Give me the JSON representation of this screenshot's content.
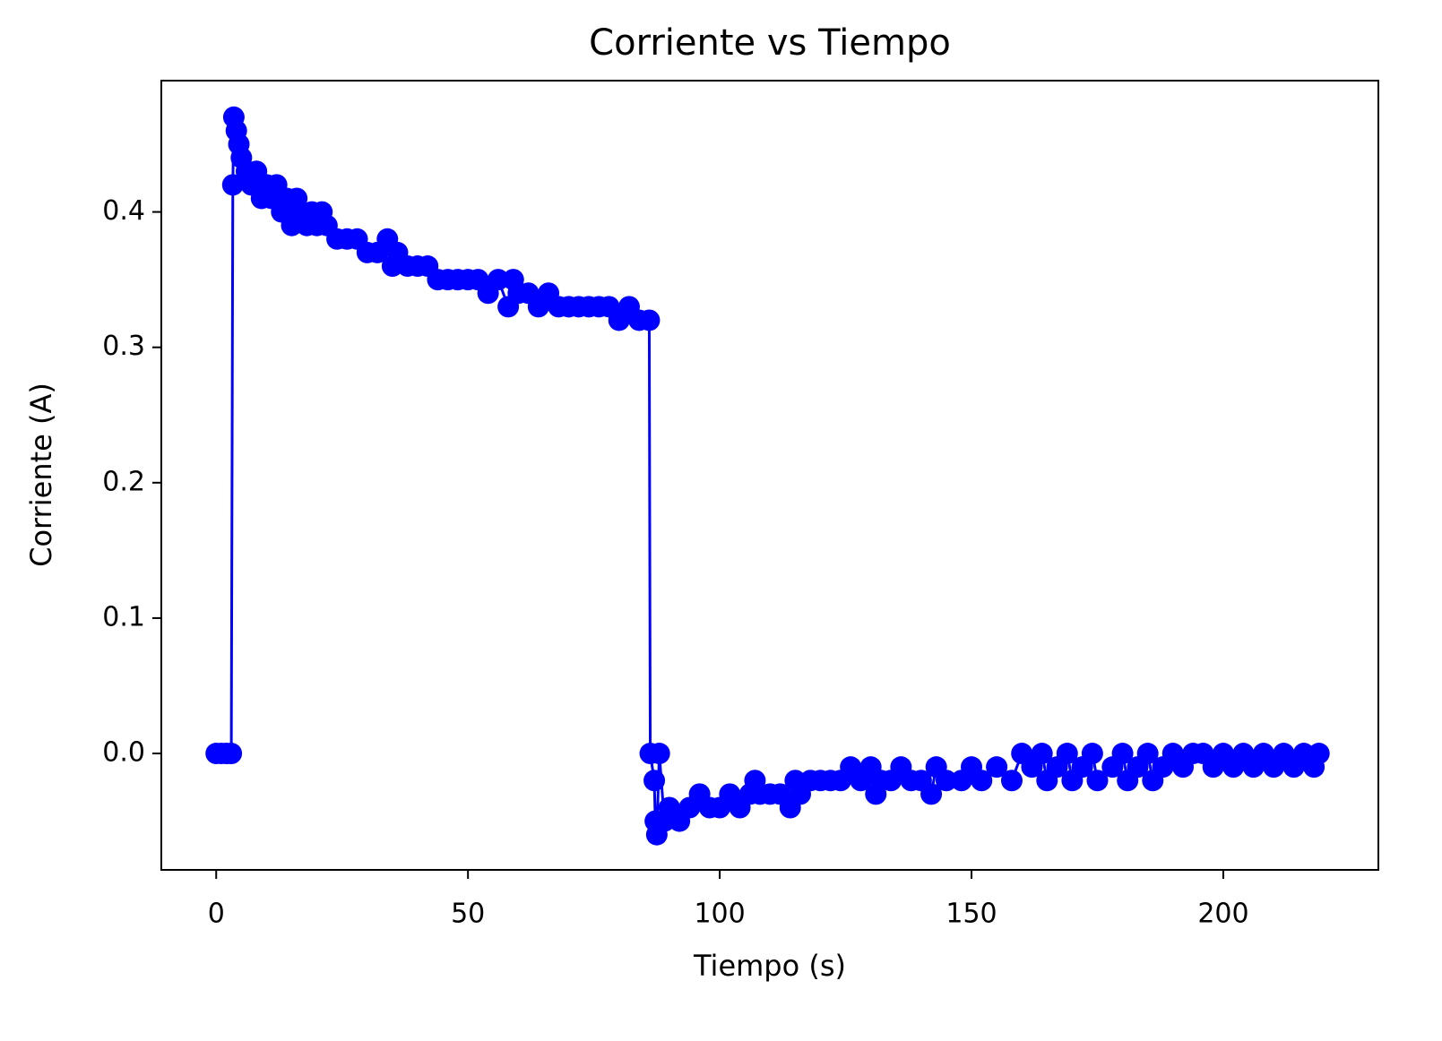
{
  "chart_data": {
    "type": "line",
    "title": "Corriente vs Tiempo",
    "xlabel": "Tiempo (s)",
    "ylabel": "Corriente (A)",
    "xlim": [
      -10.9,
      230.8
    ],
    "ylim": [
      -0.086,
      0.497
    ],
    "xticks": [
      0,
      50,
      100,
      150,
      200
    ],
    "yticks": [
      {
        "value": 0,
        "label": "0.0"
      },
      0.1,
      0.2,
      0.3,
      0.4
    ],
    "grid": false,
    "series": [
      {
        "color": "#0000ff",
        "x": [
          0,
          1,
          2,
          3,
          3.3,
          3.5,
          4,
          4.5,
          5,
          6,
          7,
          8,
          9,
          10,
          11,
          12,
          13,
          14,
          15,
          16,
          17,
          18,
          19,
          20,
          21,
          22,
          24,
          26,
          28,
          30,
          32,
          34,
          35,
          36,
          38,
          40,
          42,
          44,
          46,
          48,
          50,
          52,
          54,
          56,
          58,
          59,
          60,
          62,
          64,
          66,
          68,
          70,
          72,
          74,
          76,
          78,
          80,
          82,
          84,
          86,
          86.2,
          87,
          87.2,
          87.5,
          88,
          89,
          90,
          92,
          94,
          96,
          98,
          100,
          102,
          104,
          106,
          107,
          108,
          110,
          112,
          114,
          115,
          116,
          118,
          120,
          122,
          124,
          126,
          128,
          130,
          131,
          132,
          134,
          136,
          138,
          140,
          142,
          143,
          145,
          148,
          150,
          152,
          155,
          158,
          160,
          162,
          164,
          165,
          167,
          169,
          170,
          172,
          174,
          175,
          178,
          180,
          181,
          183,
          185,
          186,
          188,
          190,
          192,
          194,
          196,
          198,
          200,
          202,
          204,
          206,
          208,
          210,
          212,
          214,
          216,
          218,
          219
        ],
        "values": [
          0,
          0,
          0,
          0,
          0.42,
          0.47,
          0.46,
          0.45,
          0.44,
          0.43,
          0.42,
          0.43,
          0.41,
          0.42,
          0.41,
          0.42,
          0.4,
          0.41,
          0.39,
          0.41,
          0.4,
          0.39,
          0.4,
          0.39,
          0.4,
          0.39,
          0.38,
          0.38,
          0.38,
          0.37,
          0.37,
          0.38,
          0.36,
          0.37,
          0.36,
          0.36,
          0.36,
          0.35,
          0.35,
          0.35,
          0.35,
          0.35,
          0.34,
          0.35,
          0.33,
          0.35,
          0.34,
          0.34,
          0.33,
          0.34,
          0.33,
          0.33,
          0.33,
          0.33,
          0.33,
          0.33,
          0.32,
          0.33,
          0.32,
          0.32,
          0,
          -0.02,
          -0.05,
          -0.06,
          0,
          -0.05,
          -0.04,
          -0.05,
          -0.04,
          -0.03,
          -0.04,
          -0.04,
          -0.03,
          -0.04,
          -0.03,
          -0.02,
          -0.03,
          -0.03,
          -0.03,
          -0.04,
          -0.02,
          -0.03,
          -0.02,
          -0.02,
          -0.02,
          -0.02,
          -0.01,
          -0.02,
          -0.01,
          -0.03,
          -0.02,
          -0.02,
          -0.01,
          -0.02,
          -0.02,
          -0.03,
          -0.01,
          -0.02,
          -0.02,
          -0.01,
          -0.02,
          -0.01,
          -0.02,
          0,
          -0.01,
          0,
          -0.02,
          -0.01,
          0,
          -0.02,
          -0.01,
          0,
          -0.02,
          -0.01,
          0,
          -0.02,
          -0.01,
          0,
          -0.02,
          -0.01,
          0,
          -0.01,
          0,
          0,
          -0.01,
          0,
          -0.01,
          0,
          -0.01,
          0,
          -0.01,
          0,
          -0.01,
          0,
          -0.01,
          0
        ]
      }
    ]
  }
}
